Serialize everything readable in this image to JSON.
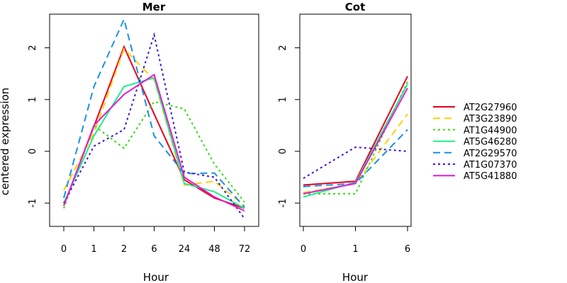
{
  "ylabel": "centered expression",
  "legend": {
    "position": "right",
    "entries": [
      {
        "label": "AT2G27960",
        "color": "#e8001c",
        "dash": "solid"
      },
      {
        "label": "AT3G23890",
        "color": "#ffd000",
        "dash": "dashed"
      },
      {
        "label": "AT1G44900",
        "color": "#33dd11",
        "dash": "dotted"
      },
      {
        "label": "AT5G46280",
        "color": "#19f08a",
        "dash": "solid"
      },
      {
        "label": "AT2G29570",
        "color": "#1a90e8",
        "dash": "dashed"
      },
      {
        "label": "AT1G07370",
        "color": "#3b13d6",
        "dash": "dotted"
      },
      {
        "label": "AT5G41880",
        "color": "#e61ad6",
        "dash": "solid"
      }
    ]
  },
  "chart_data": [
    {
      "type": "line",
      "title": "Mer",
      "xlabel": "Hour",
      "ylabel": "centered expression",
      "categories": [
        "0",
        "1",
        "2",
        "6",
        "24",
        "48",
        "72"
      ],
      "ylim": [
        -1.45,
        2.65
      ],
      "yticks": [
        -1,
        0,
        1,
        2
      ],
      "grid": false,
      "series": [
        {
          "name": "AT2G27960",
          "values": [
            -1.05,
            0.48,
            2.02,
            0.72,
            -0.55,
            -0.9,
            -1.1
          ]
        },
        {
          "name": "AT3G23890",
          "values": [
            -0.75,
            0.35,
            1.98,
            1.38,
            -0.65,
            -0.58,
            -1.05
          ]
        },
        {
          "name": "AT1G44900",
          "values": [
            -1.1,
            0.5,
            0.06,
            0.96,
            0.82,
            -0.25,
            -0.98
          ]
        },
        {
          "name": "AT5G46280",
          "values": [
            -1.0,
            0.3,
            1.25,
            1.42,
            -0.62,
            -0.78,
            -1.1
          ]
        },
        {
          "name": "AT2G29570",
          "values": [
            -0.9,
            1.25,
            2.55,
            0.3,
            -0.43,
            -0.42,
            -1.08
          ]
        },
        {
          "name": "AT1G07370",
          "values": [
            -1.0,
            0.1,
            0.42,
            2.25,
            -0.4,
            -0.5,
            -1.3
          ]
        },
        {
          "name": "AT5G41880",
          "values": [
            -1.05,
            0.5,
            1.1,
            1.48,
            -0.5,
            -0.88,
            -1.15
          ]
        }
      ]
    },
    {
      "type": "line",
      "title": "Cot",
      "xlabel": "Hour",
      "ylabel": "",
      "categories": [
        "0",
        "1",
        "6"
      ],
      "ylim": [
        -1.45,
        2.65
      ],
      "yticks": [
        -1,
        0,
        1,
        2
      ],
      "grid": false,
      "series": [
        {
          "name": "AT2G27960",
          "values": [
            -0.65,
            -0.58,
            1.45
          ]
        },
        {
          "name": "AT3G23890",
          "values": [
            -0.8,
            -0.62,
            0.72
          ]
        },
        {
          "name": "AT1G44900",
          "values": [
            -0.82,
            -0.82,
            1.35
          ]
        },
        {
          "name": "AT5G46280",
          "values": [
            -0.88,
            -0.6,
            1.3
          ]
        },
        {
          "name": "AT2G29570",
          "values": [
            -0.68,
            -0.62,
            0.42
          ]
        },
        {
          "name": "AT1G07370",
          "values": [
            -0.52,
            0.08,
            0.0
          ]
        },
        {
          "name": "AT5G41880",
          "values": [
            -0.82,
            -0.62,
            1.22
          ]
        }
      ]
    }
  ]
}
